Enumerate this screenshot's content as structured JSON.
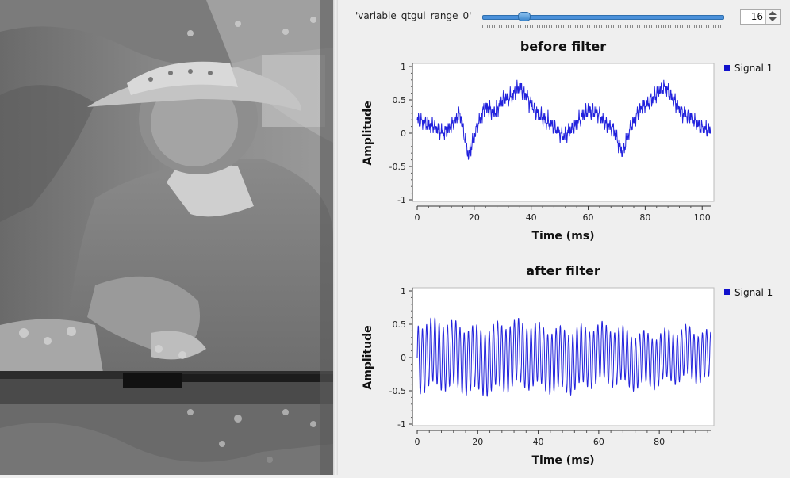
{
  "range": {
    "label": "'variable_qtgui_range_0'",
    "value": "16",
    "slider_fraction": 0.155
  },
  "colors": {
    "signal": "#2222dd",
    "legend_box": "#1111cc"
  },
  "plots": [
    {
      "title": "before filter",
      "xlabel": "Time (ms)",
      "ylabel": "Amplitude",
      "legend": "Signal 1",
      "xticks": [
        "0",
        "20",
        "40",
        "60",
        "80",
        "100"
      ],
      "yticks": [
        "1",
        "0.5",
        "0",
        "-0.5",
        "-1"
      ]
    },
    {
      "title": "after filter",
      "xlabel": "Time (ms)",
      "ylabel": "Amplitude",
      "legend": "Signal 1",
      "xticks": [
        "0",
        "20",
        "40",
        "60",
        "80"
      ],
      "yticks": [
        "1",
        "0.5",
        "0",
        "-0.5",
        "-1"
      ]
    }
  ],
  "chart_data": [
    {
      "type": "line",
      "title": "before filter",
      "xlabel": "Time (ms)",
      "ylabel": "Amplitude",
      "xlim": [
        0,
        103
      ],
      "ylim": [
        -1,
        1
      ],
      "series": [
        {
          "name": "Signal 1",
          "x": [
            0,
            3,
            6,
            9,
            12,
            15,
            18,
            21,
            24,
            27,
            30,
            33,
            36,
            39,
            42,
            45,
            48,
            51,
            54,
            57,
            60,
            63,
            66,
            69,
            72,
            75,
            78,
            81,
            84,
            87,
            90,
            93,
            96,
            99,
            102
          ],
          "values": [
            0.2,
            0.15,
            0.1,
            0.0,
            0.1,
            0.3,
            -0.35,
            0.1,
            0.4,
            0.3,
            0.5,
            0.55,
            0.7,
            0.5,
            0.3,
            0.2,
            0.1,
            -0.05,
            0.05,
            0.2,
            0.35,
            0.3,
            0.15,
            0.05,
            -0.3,
            0.1,
            0.35,
            0.45,
            0.6,
            0.7,
            0.5,
            0.3,
            0.25,
            0.1,
            0.05
          ]
        }
      ]
    },
    {
      "type": "line",
      "title": "after filter",
      "xlabel": "Time (ms)",
      "ylabel": "Amplitude",
      "xlim": [
        0,
        97
      ],
      "ylim": [
        -1,
        1
      ],
      "series": [
        {
          "name": "Signal 1",
          "x": [
            0,
            10,
            20,
            30,
            40,
            50,
            60,
            70,
            80,
            90,
            96
          ],
          "values": [
            0.5,
            0.48,
            0.47,
            0.48,
            0.45,
            0.45,
            0.42,
            0.4,
            0.37,
            0.37,
            0.35
          ]
        }
      ]
    }
  ]
}
